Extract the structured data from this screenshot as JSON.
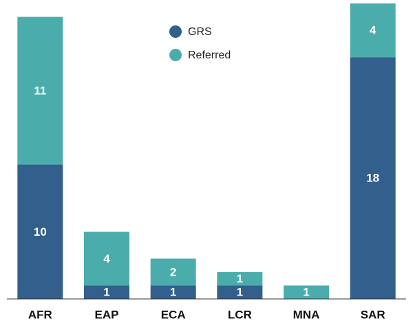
{
  "chart_data": {
    "type": "stacked_bar",
    "categories": [
      "AFR",
      "EAP",
      "ECA",
      "LCR",
      "MNA",
      "SAR"
    ],
    "series": [
      {
        "name": "GRS",
        "color": "#325f8b",
        "values": [
          10,
          1,
          1,
          1,
          0,
          18
        ]
      },
      {
        "name": "Referred",
        "color": "#4badab",
        "values": [
          11,
          4,
          2,
          1,
          1,
          4
        ]
      }
    ],
    "ylim": [
      0,
      22
    ],
    "legend": "top"
  }
}
